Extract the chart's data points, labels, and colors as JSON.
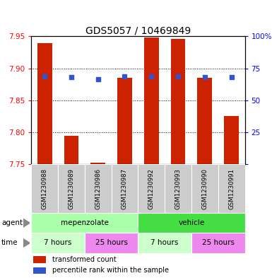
{
  "title": "GDS5057 / 10469849",
  "samples": [
    "GSM1230988",
    "GSM1230989",
    "GSM1230986",
    "GSM1230987",
    "GSM1230992",
    "GSM1230993",
    "GSM1230990",
    "GSM1230991"
  ],
  "bar_values": [
    7.94,
    7.795,
    7.753,
    7.885,
    7.948,
    7.946,
    7.885,
    7.825
  ],
  "blue_dot_values": [
    7.888,
    7.886,
    7.883,
    7.888,
    7.888,
    7.888,
    7.886,
    7.886
  ],
  "ylim": [
    7.75,
    7.95
  ],
  "yticks_left": [
    7.75,
    7.8,
    7.85,
    7.9,
    7.95
  ],
  "yticks_right": [
    0,
    25,
    50,
    75,
    100
  ],
  "bar_color": "#cc2200",
  "dot_color": "#3355cc",
  "agent_color_mep": "#aaffaa",
  "agent_color_veh": "#44dd44",
  "time_color_7": "#ccffcc",
  "time_color_25": "#ee88ee",
  "legend_bar_label": "transformed count",
  "legend_dot_label": "percentile rank within the sample",
  "bar_bottom": 7.75,
  "bar_width": 0.55
}
